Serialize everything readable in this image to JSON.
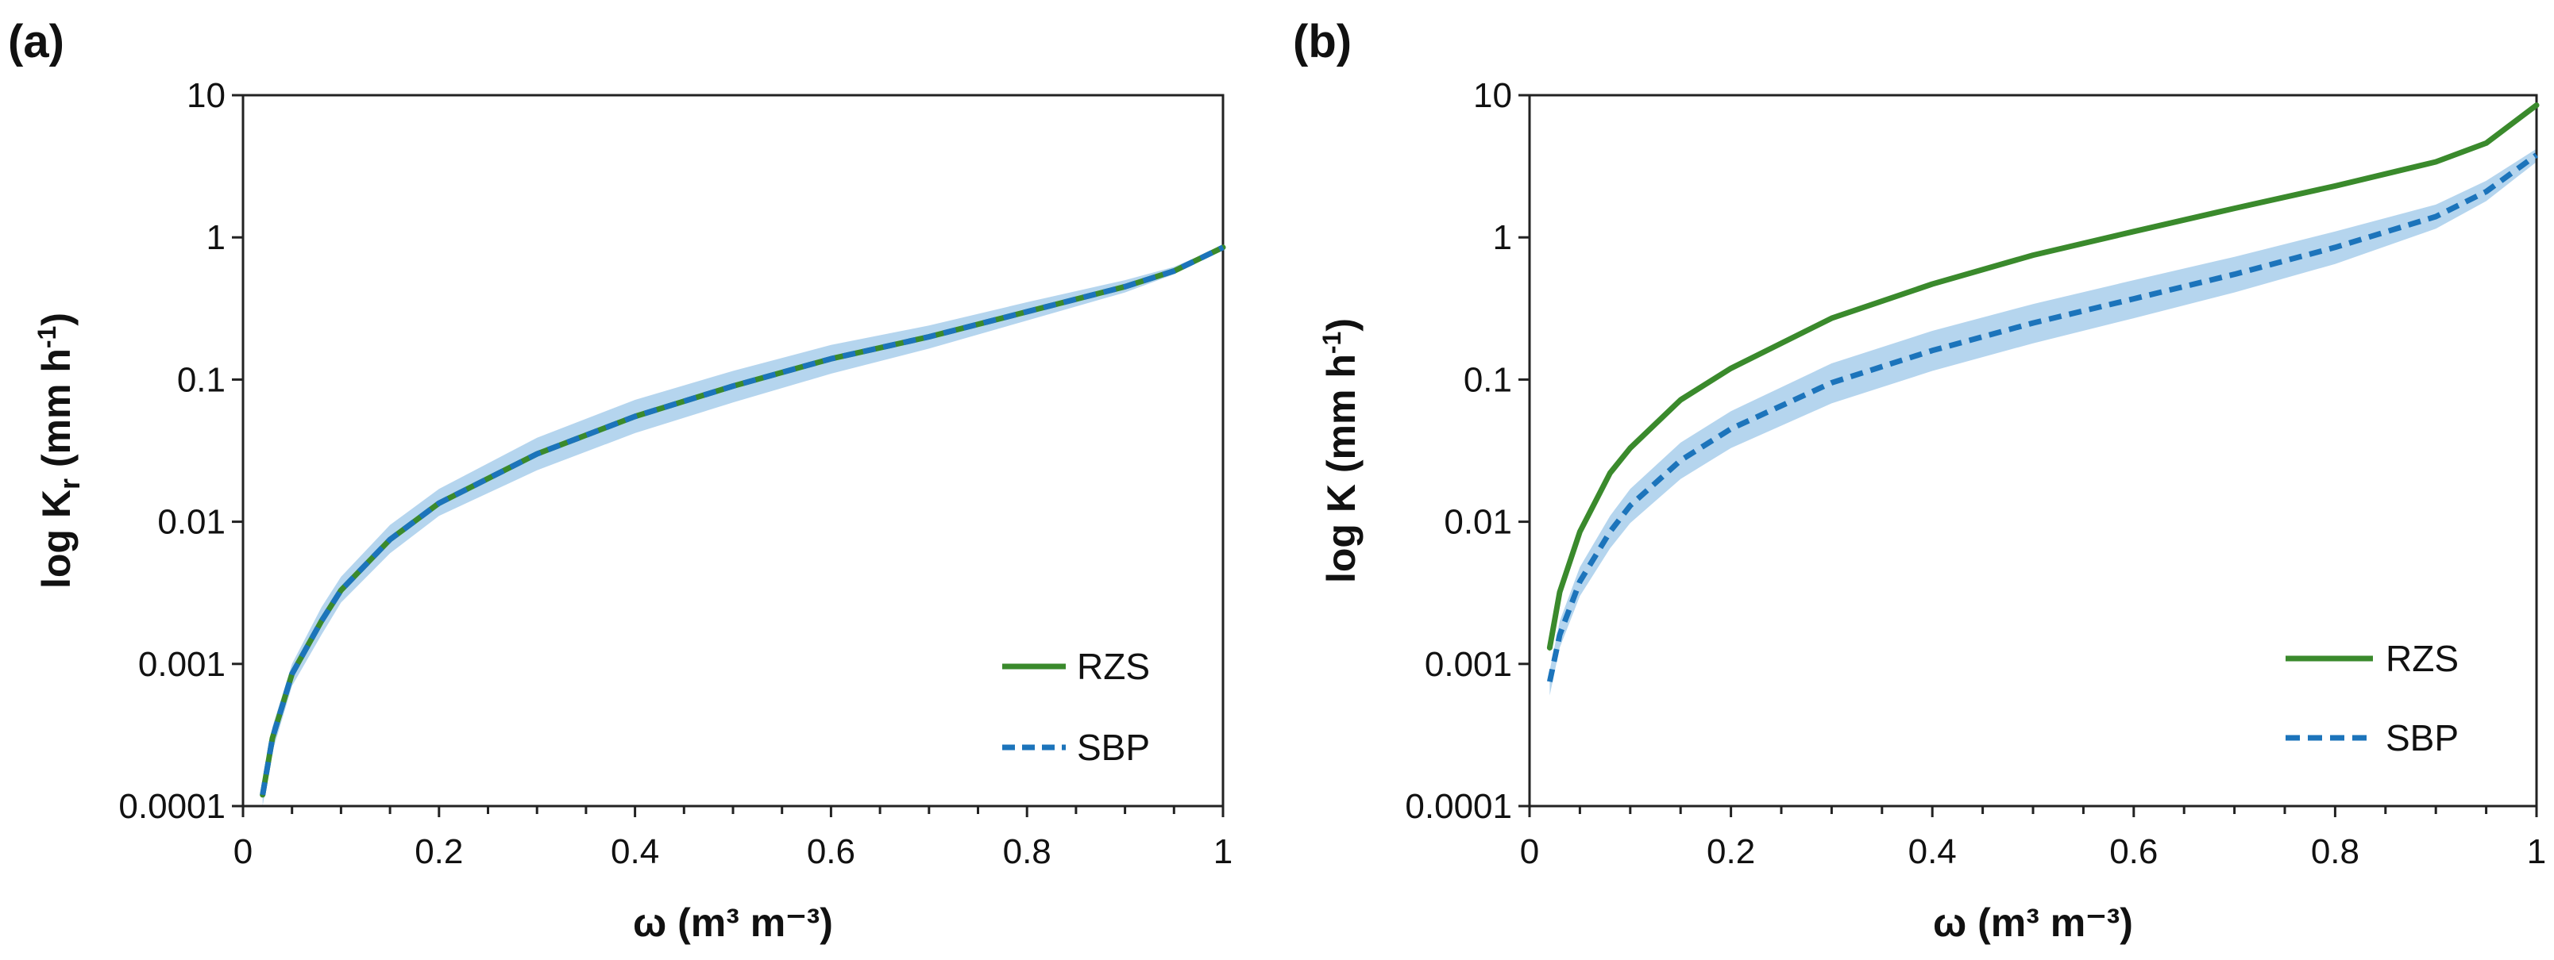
{
  "figure": {
    "panels": [
      "(a)",
      "(b)"
    ]
  },
  "colors": {
    "rzs": "#3a8a2c",
    "sbp": "#1c74bb",
    "rzs_band": "#9ccf8a",
    "sbp_band": "#9cc7e8"
  },
  "chart_data": [
    {
      "type": "line",
      "panel_label": "(a)",
      "title": "",
      "xlabel": "ω (m³ m⁻³)",
      "ylabel": "log K",
      "ylabel_sub": "r",
      "ylabel_unit": " (mm h",
      "ylabel_exp": "-1",
      "ylabel_close": ")",
      "xlim": [
        0,
        1
      ],
      "ylim": [
        0.0001,
        10
      ],
      "yscale": "log",
      "xticks": [
        0,
        0.2,
        0.4,
        0.6,
        0.8,
        1
      ],
      "xtick_labels": [
        "0",
        "0.2",
        "0.4",
        "0.6",
        "0.8",
        "1"
      ],
      "yticks": [
        0.0001,
        0.001,
        0.01,
        0.1,
        1,
        10
      ],
      "ytick_labels": [
        "0.0001",
        "0.001",
        "0.01",
        "0.1",
        "1",
        "10"
      ],
      "legend": {
        "position": "bottom-right",
        "entries": [
          "RZS",
          "SBP"
        ]
      },
      "x": [
        0.02,
        0.03,
        0.05,
        0.08,
        0.1,
        0.15,
        0.2,
        0.3,
        0.4,
        0.5,
        0.6,
        0.7,
        0.8,
        0.9,
        0.95,
        1.0
      ],
      "series": [
        {
          "name": "RZS",
          "style": "solid",
          "values": [
            0.00012,
            0.0003,
            0.00085,
            0.002,
            0.0033,
            0.0075,
            0.0135,
            0.03,
            0.055,
            0.09,
            0.14,
            0.2,
            0.3,
            0.45,
            0.58,
            0.85
          ]
        },
        {
          "name": "SBP",
          "style": "dashed",
          "values": [
            0.00012,
            0.0003,
            0.00085,
            0.002,
            0.0033,
            0.0075,
            0.0135,
            0.03,
            0.055,
            0.09,
            0.14,
            0.2,
            0.3,
            0.45,
            0.58,
            0.85
          ],
          "band_lower": [
            0.0001,
            0.00024,
            0.0007,
            0.0016,
            0.0027,
            0.006,
            0.011,
            0.023,
            0.042,
            0.069,
            0.11,
            0.165,
            0.26,
            0.41,
            0.55,
            0.83
          ],
          "band_upper": [
            0.00014,
            0.00036,
            0.001,
            0.0025,
            0.0041,
            0.0095,
            0.017,
            0.039,
            0.072,
            0.115,
            0.175,
            0.24,
            0.35,
            0.5,
            0.62,
            0.87
          ]
        }
      ]
    },
    {
      "type": "line",
      "panel_label": "(b)",
      "title": "",
      "xlabel": "ω (m³ m⁻³)",
      "ylabel": "log K",
      "ylabel_sub": "",
      "ylabel_unit": " (mm h",
      "ylabel_exp": "-1",
      "ylabel_close": ")",
      "xlim": [
        0,
        1
      ],
      "ylim": [
        0.0001,
        10
      ],
      "yscale": "log",
      "xticks": [
        0,
        0.2,
        0.4,
        0.6,
        0.8,
        1
      ],
      "xtick_labels": [
        "0",
        "0.2",
        "0.4",
        "0.6",
        "0.8",
        "1"
      ],
      "yticks": [
        0.0001,
        0.001,
        0.01,
        0.1,
        1,
        10
      ],
      "ytick_labels": [
        "0.0001",
        "0.001",
        "0.01",
        "0.1",
        "1",
        "10"
      ],
      "legend": {
        "position": "bottom-right",
        "entries": [
          "RZS",
          "SBP"
        ]
      },
      "x": [
        0.02,
        0.03,
        0.05,
        0.08,
        0.1,
        0.15,
        0.2,
        0.3,
        0.4,
        0.5,
        0.6,
        0.7,
        0.8,
        0.9,
        0.95,
        1.0
      ],
      "series": [
        {
          "name": "RZS",
          "style": "solid",
          "values": [
            0.0013,
            0.0032,
            0.0085,
            0.022,
            0.033,
            0.072,
            0.12,
            0.27,
            0.47,
            0.75,
            1.1,
            1.6,
            2.3,
            3.4,
            4.6,
            8.5
          ],
          "band_lower": [
            0.0012,
            0.003,
            0.008,
            0.0205,
            0.031,
            0.068,
            0.114,
            0.26,
            0.45,
            0.72,
            1.05,
            1.53,
            2.2,
            3.25,
            4.4,
            8.2
          ],
          "band_upper": [
            0.0014,
            0.0034,
            0.009,
            0.0235,
            0.035,
            0.076,
            0.126,
            0.28,
            0.49,
            0.78,
            1.15,
            1.67,
            2.4,
            3.55,
            4.8,
            8.8
          ]
        },
        {
          "name": "SBP",
          "style": "dashed",
          "values": [
            0.00075,
            0.0016,
            0.0038,
            0.0085,
            0.013,
            0.027,
            0.045,
            0.095,
            0.16,
            0.25,
            0.37,
            0.55,
            0.85,
            1.4,
            2.1,
            3.8
          ],
          "band_lower": [
            0.0006,
            0.0013,
            0.003,
            0.0065,
            0.0098,
            0.02,
            0.033,
            0.068,
            0.115,
            0.18,
            0.27,
            0.41,
            0.65,
            1.15,
            1.8,
            3.4
          ],
          "band_upper": [
            0.0009,
            0.002,
            0.0048,
            0.011,
            0.017,
            0.036,
            0.06,
            0.13,
            0.22,
            0.34,
            0.5,
            0.73,
            1.1,
            1.7,
            2.5,
            4.2
          ]
        }
      ]
    }
  ]
}
